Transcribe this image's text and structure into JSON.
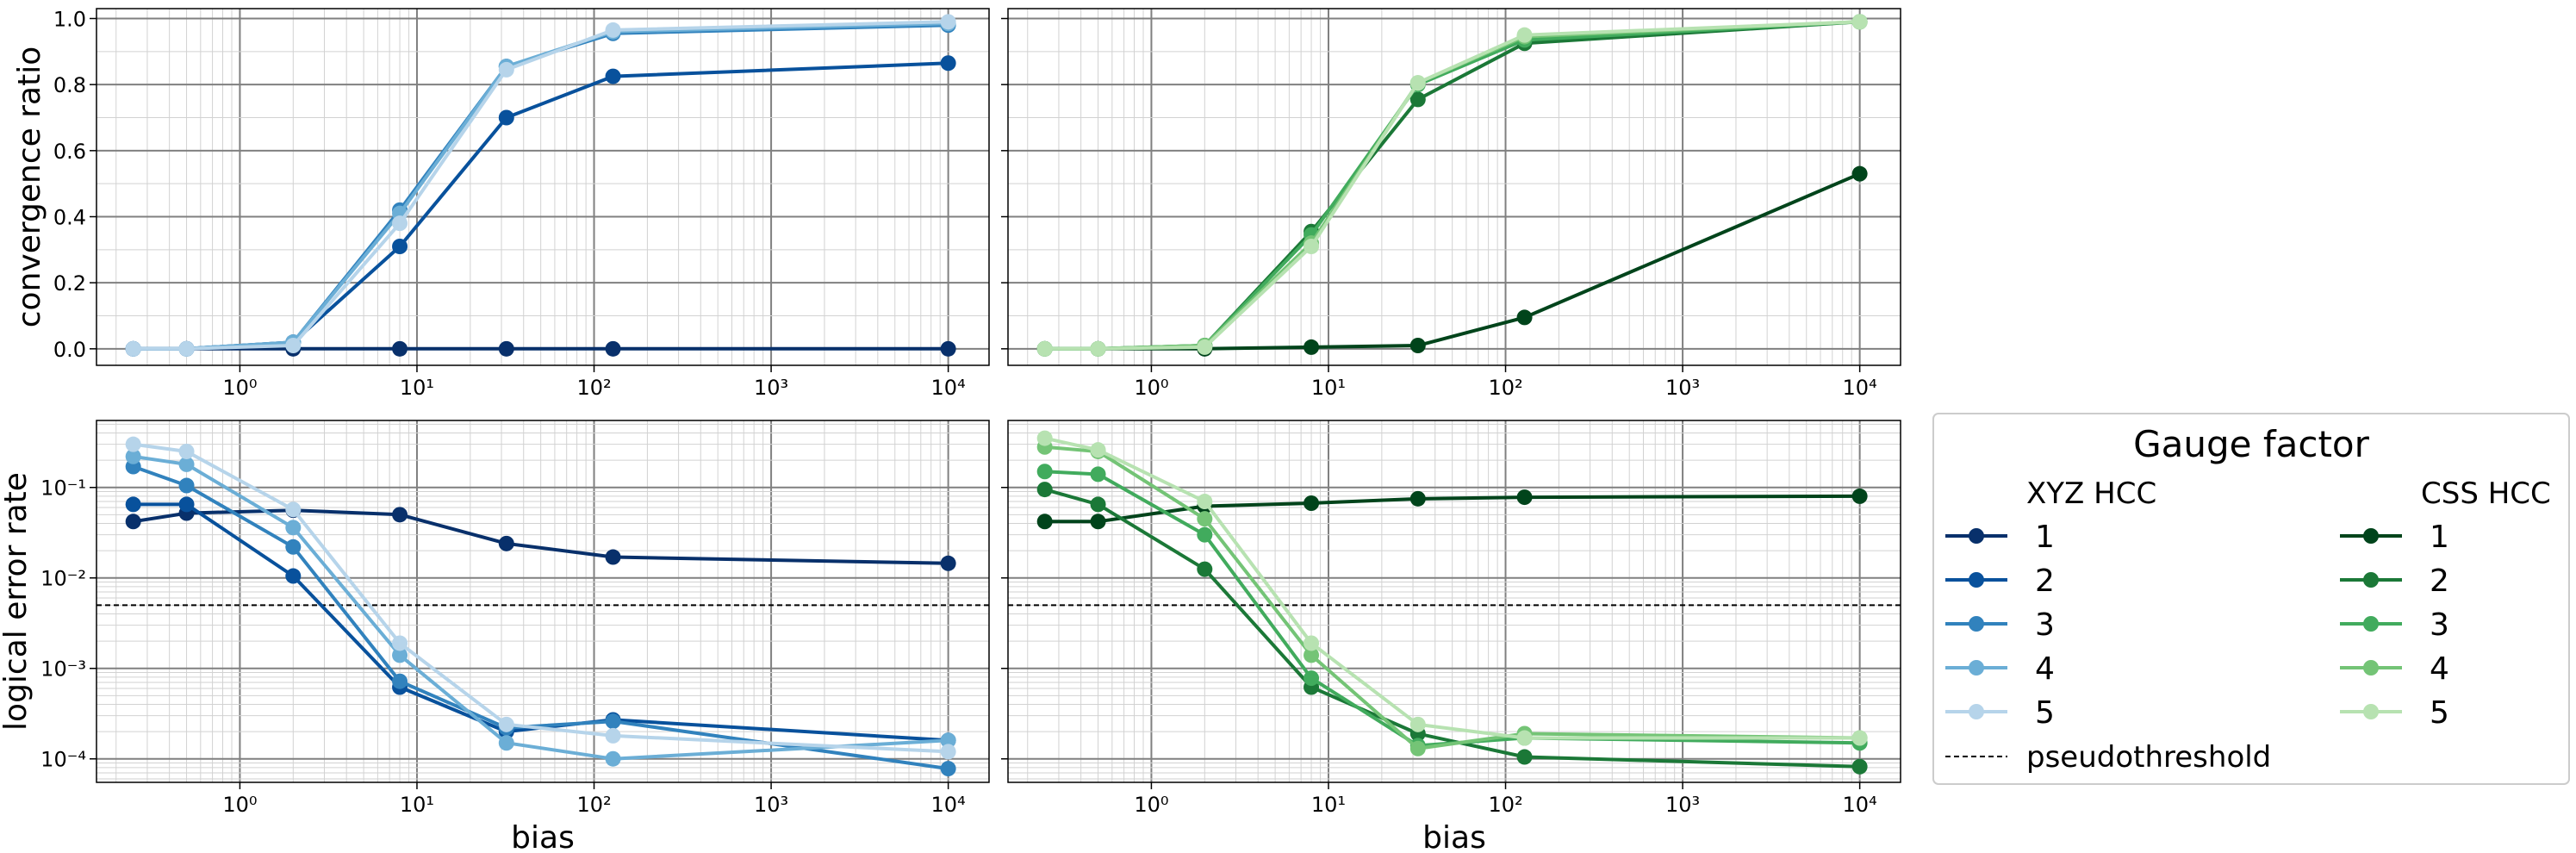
{
  "colors": {
    "xyz": [
      "#08306b",
      "#08519c",
      "#3182bd",
      "#6baed6",
      "#b6d4ea"
    ],
    "css": [
      "#00441b",
      "#1b7837",
      "#41ab5d",
      "#74c476",
      "#b7e2b1"
    ]
  },
  "chart_data": [
    {
      "type": "line",
      "panel": "top-left",
      "xlabel": "",
      "ylabel": "convergence ratio",
      "xscale": "log",
      "yscale": "linear",
      "xlim": [
        0.155,
        17000
      ],
      "ylim": [
        -0.05,
        1.03
      ],
      "xticklabels": [
        "10⁰",
        "10¹",
        "10²",
        "10³",
        "10⁴"
      ],
      "yticklabels": [
        "0.0",
        "0.2",
        "0.4",
        "0.6",
        "0.8",
        "1.0"
      ],
      "grid": true,
      "x": [
        0.25,
        0.5,
        2,
        8,
        32,
        128,
        10000
      ],
      "series": [
        {
          "name": "1",
          "values": [
            0,
            0,
            0,
            0,
            0,
            0,
            0
          ]
        },
        {
          "name": "2",
          "values": [
            0,
            0,
            0.02,
            0.31,
            0.7,
            0.825,
            0.865
          ]
        },
        {
          "name": "3",
          "values": [
            0,
            0,
            0.02,
            0.42,
            0.855,
            0.955,
            0.98
          ]
        },
        {
          "name": "4",
          "values": [
            0,
            0,
            0.02,
            0.41,
            0.855,
            0.96,
            0.985
          ]
        },
        {
          "name": "5",
          "values": [
            0,
            0,
            0.01,
            0.38,
            0.845,
            0.965,
            0.99
          ]
        }
      ]
    },
    {
      "type": "line",
      "panel": "top-right",
      "xlabel": "",
      "ylabel": "",
      "xscale": "log",
      "yscale": "linear",
      "xlim": [
        0.155,
        17000
      ],
      "ylim": [
        -0.05,
        1.03
      ],
      "xticklabels": [
        "10⁰",
        "10¹",
        "10²",
        "10³",
        "10⁴"
      ],
      "grid": true,
      "x": [
        0.25,
        0.5,
        2,
        8,
        32,
        128,
        10000
      ],
      "series": [
        {
          "name": "1",
          "values": [
            0,
            0,
            0,
            0.005,
            0.01,
            0.095,
            0.53
          ]
        },
        {
          "name": "2",
          "values": [
            0,
            0,
            0.01,
            0.355,
            0.755,
            0.925,
            0.99
          ]
        },
        {
          "name": "3",
          "values": [
            0,
            0,
            0.01,
            0.345,
            0.8,
            0.935,
            0.99
          ]
        },
        {
          "name": "4",
          "values": [
            0,
            0,
            0.01,
            0.32,
            0.805,
            0.945,
            0.99
          ]
        },
        {
          "name": "5",
          "values": [
            0,
            0,
            0.005,
            0.31,
            0.805,
            0.95,
            0.99
          ]
        }
      ]
    },
    {
      "type": "line",
      "panel": "bottom-left",
      "xlabel": "bias",
      "ylabel": "logical error rate",
      "xscale": "log",
      "yscale": "log",
      "xlim": [
        0.155,
        17000
      ],
      "ylim": [
        5.5e-05,
        0.55
      ],
      "xticklabels": [
        "10⁰",
        "10¹",
        "10²",
        "10³",
        "10⁴"
      ],
      "yticklabels": [
        "10⁻⁴",
        "10⁻³",
        "10⁻²",
        "10⁻¹"
      ],
      "grid": true,
      "pseudothreshold": 0.005,
      "x": [
        0.25,
        0.5,
        2,
        8,
        32,
        128,
        10000
      ],
      "series": [
        {
          "name": "1",
          "values": [
            0.042,
            0.052,
            0.056,
            0.05,
            0.024,
            0.017,
            0.0145
          ]
        },
        {
          "name": "2",
          "values": [
            0.065,
            0.065,
            0.0105,
            0.00062,
            0.0002,
            0.00027,
            0.00016
          ]
        },
        {
          "name": "3",
          "values": [
            0.17,
            0.105,
            0.022,
            0.00072,
            0.00022,
            0.00026,
            7.8e-05
          ]
        },
        {
          "name": "4",
          "values": [
            0.22,
            0.18,
            0.036,
            0.0014,
            0.00015,
            0.0001,
            0.00016
          ]
        },
        {
          "name": "5",
          "values": [
            0.3,
            0.25,
            0.057,
            0.0019,
            0.00024,
            0.00018,
            0.00012
          ]
        }
      ]
    },
    {
      "type": "line",
      "panel": "bottom-right",
      "xlabel": "bias",
      "ylabel": "",
      "xscale": "log",
      "yscale": "log",
      "xlim": [
        0.155,
        17000
      ],
      "ylim": [
        5.5e-05,
        0.55
      ],
      "xticklabels": [
        "10⁰",
        "10¹",
        "10²",
        "10³",
        "10⁴"
      ],
      "grid": true,
      "pseudothreshold": 0.005,
      "x": [
        0.25,
        0.5,
        2,
        8,
        32,
        128,
        10000
      ],
      "series": [
        {
          "name": "1",
          "values": [
            0.042,
            0.042,
            0.062,
            0.067,
            0.075,
            0.078,
            0.08
          ]
        },
        {
          "name": "2",
          "values": [
            0.095,
            0.065,
            0.0125,
            0.00062,
            0.00019,
            0.000105,
            8.2e-05
          ]
        },
        {
          "name": "3",
          "values": [
            0.15,
            0.14,
            0.03,
            0.00078,
            0.00014,
            0.00017,
            0.00015
          ]
        },
        {
          "name": "4",
          "values": [
            0.28,
            0.25,
            0.045,
            0.0014,
            0.00013,
            0.00019,
            0.00017
          ]
        },
        {
          "name": "5",
          "values": [
            0.35,
            0.26,
            0.07,
            0.0019,
            0.00024,
            0.00017,
            0.00017
          ]
        }
      ]
    }
  ],
  "legend": {
    "title": "Gauge factor",
    "xyz_header": "XYZ HCC",
    "css_header": "CSS HCC",
    "labels": [
      "1",
      "2",
      "3",
      "4",
      "5"
    ],
    "threshold_label": "pseudothreshold"
  }
}
